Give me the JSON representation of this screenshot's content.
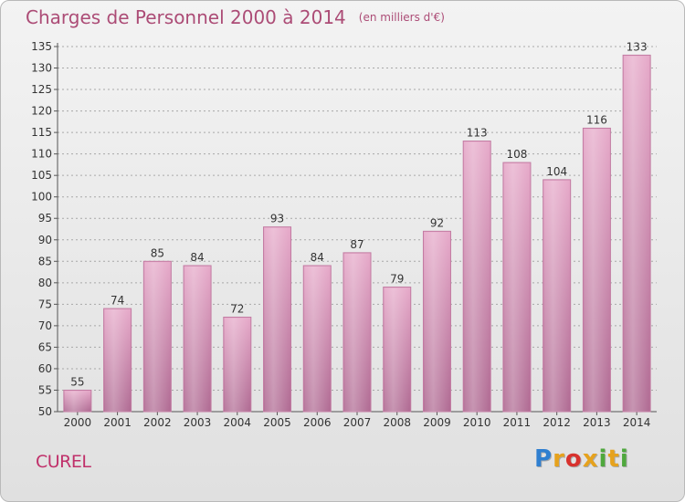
{
  "header": {
    "title": "Charges de Personnel 2000 à 2014",
    "subtitle": "(en milliers d'€)"
  },
  "place": "CUREL",
  "logo": {
    "text": "Proxiti",
    "colors": [
      "#2f7fd0",
      "#e6a21d",
      "#d8322e",
      "#e6a21d",
      "#4fa83d",
      "#e6a21d",
      "#4fa83d"
    ]
  },
  "chart_data": {
    "type": "bar",
    "title": "Charges de Personnel 2000 à 2014",
    "subtitle": "(en milliers d'€)",
    "categories": [
      "2000",
      "2001",
      "2002",
      "2003",
      "2004",
      "2005",
      "2006",
      "2007",
      "2008",
      "2009",
      "2010",
      "2011",
      "2012",
      "2013",
      "2014"
    ],
    "values": [
      55,
      74,
      85,
      84,
      72,
      93,
      84,
      87,
      79,
      92,
      113,
      108,
      104,
      116,
      133
    ],
    "ylim": [
      50,
      135
    ],
    "yticks": [
      50,
      55,
      60,
      65,
      70,
      75,
      80,
      85,
      90,
      95,
      100,
      105,
      110,
      115,
      120,
      125,
      130,
      135
    ],
    "grid": "horizontal-dashed",
    "bar_color": "#d98fb5",
    "xlabel": "",
    "ylabel": ""
  }
}
